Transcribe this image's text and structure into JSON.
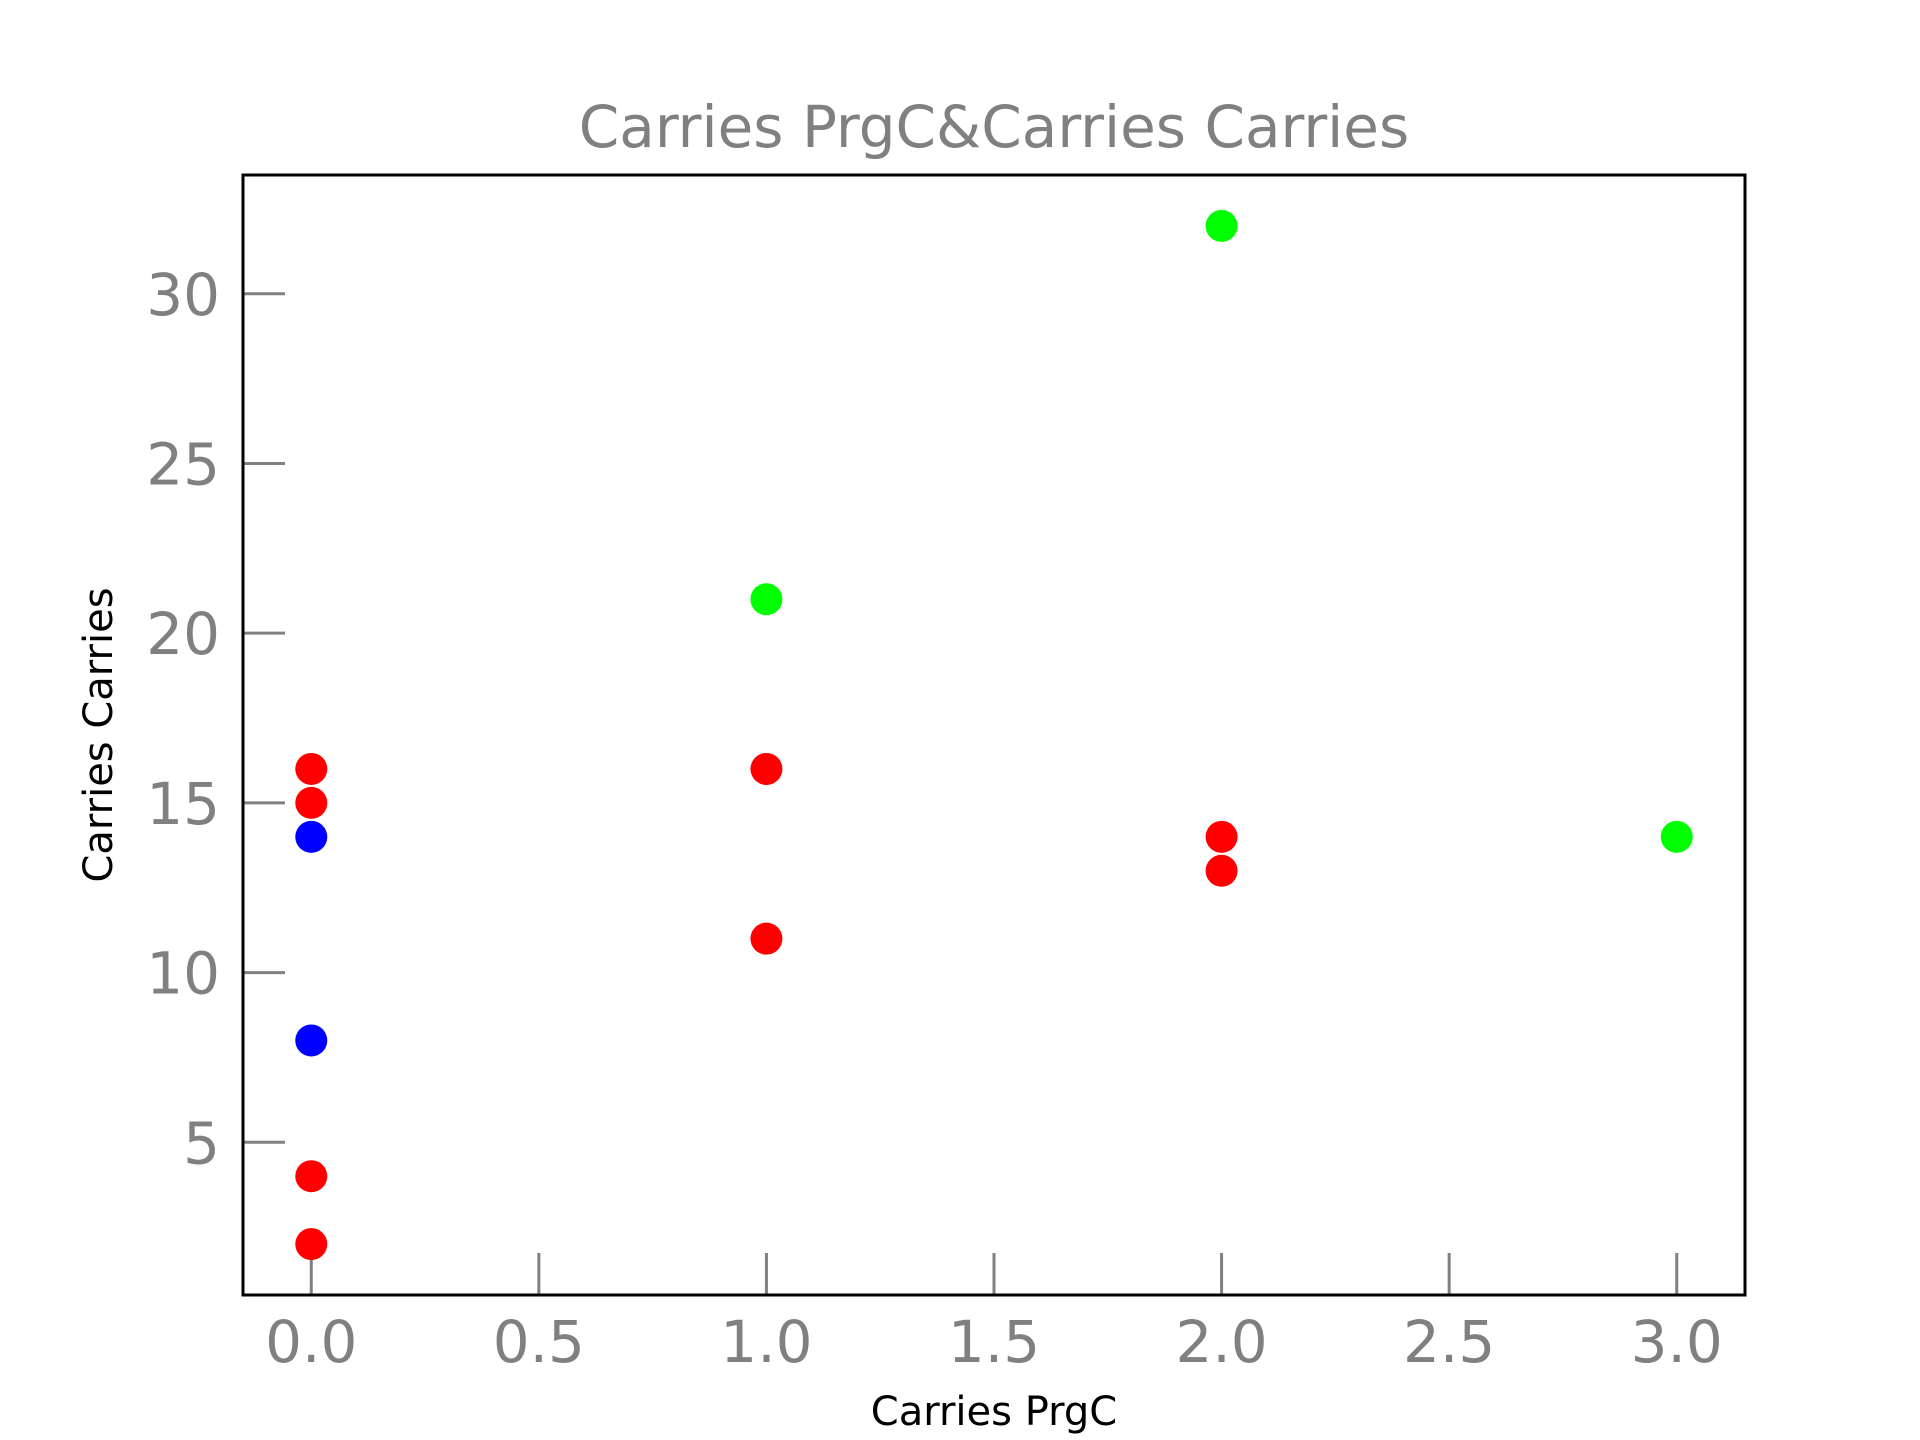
{
  "chart_data": {
    "type": "scatter",
    "title": "Carries PrgC&Carries Carries",
    "xlabel": "Carries PrgC",
    "ylabel": "Carries Carries",
    "xlim": [
      -0.15,
      3.15
    ],
    "ylim": [
      0.5,
      33.5
    ],
    "xticks": [
      0.0,
      0.5,
      1.0,
      1.5,
      2.0,
      2.5,
      3.0
    ],
    "xtick_labels": [
      "0.0",
      "0.5",
      "1.0",
      "1.5",
      "2.0",
      "2.5",
      "3.0"
    ],
    "yticks": [
      5,
      10,
      15,
      20,
      25,
      30
    ],
    "ytick_labels": [
      "5",
      "10",
      "15",
      "20",
      "25",
      "30"
    ],
    "grid": false,
    "series": [
      {
        "color": "#ff0000",
        "points": [
          {
            "x": 0,
            "y": 16
          },
          {
            "x": 0,
            "y": 15
          },
          {
            "x": 0,
            "y": 4
          },
          {
            "x": 0,
            "y": 2
          },
          {
            "x": 1,
            "y": 16
          },
          {
            "x": 1,
            "y": 11
          },
          {
            "x": 2,
            "y": 14
          },
          {
            "x": 2,
            "y": 13
          }
        ]
      },
      {
        "color": "#0000ff",
        "points": [
          {
            "x": 0,
            "y": 14
          },
          {
            "x": 0,
            "y": 8
          }
        ]
      },
      {
        "color": "#00ff00",
        "points": [
          {
            "x": 1,
            "y": 21
          },
          {
            "x": 2,
            "y": 32
          },
          {
            "x": 3,
            "y": 14
          }
        ]
      }
    ]
  }
}
